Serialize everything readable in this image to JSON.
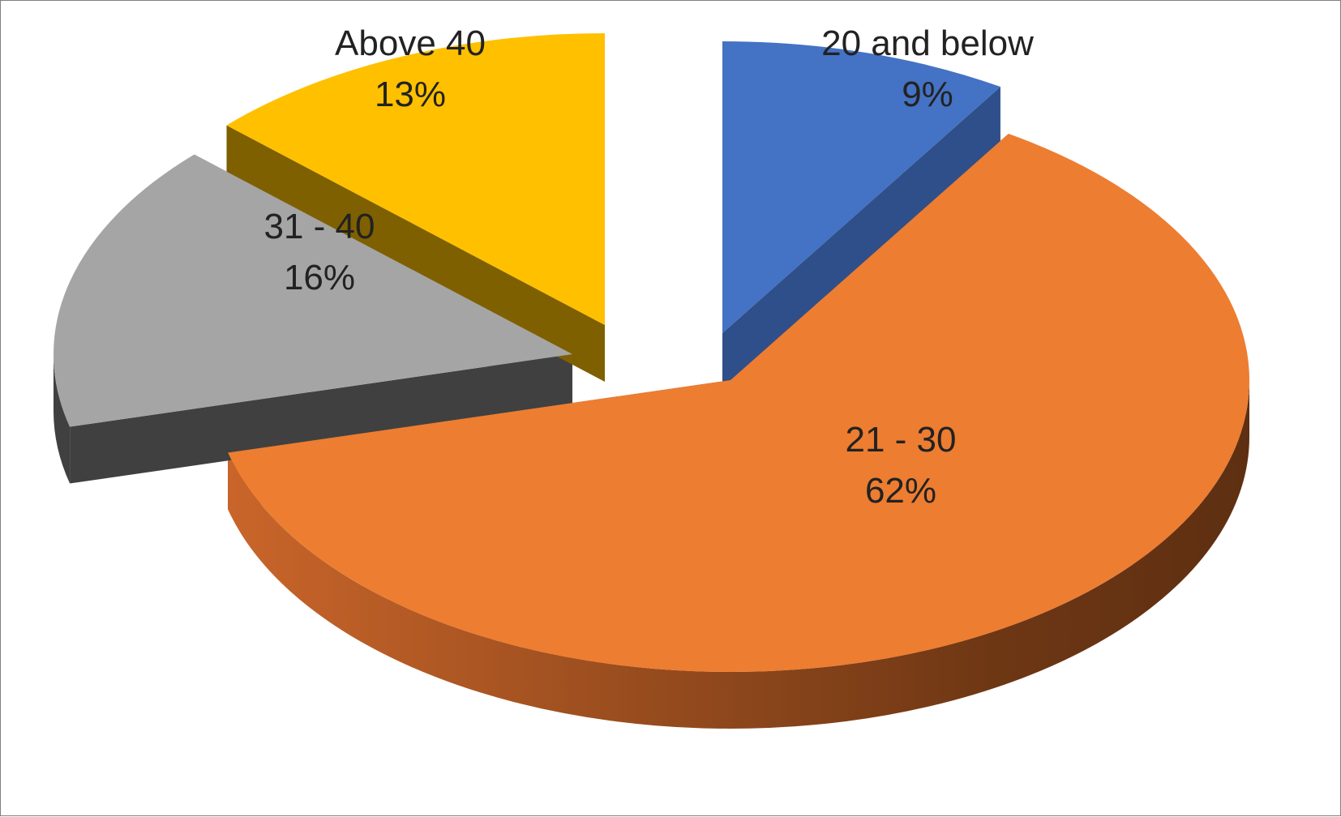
{
  "chart_data": {
    "type": "pie",
    "style": "3d-exploded",
    "title": "",
    "legend": "none",
    "slices": [
      {
        "label": "20 and below",
        "percent_label": "9%",
        "value": 9,
        "color": "#4472c4"
      },
      {
        "label": "21 - 30",
        "percent_label": "62%",
        "value": 62,
        "color": "#ed7d31"
      },
      {
        "label": "31 - 40",
        "percent_label": "16%",
        "value": 16,
        "color": "#a5a5a5"
      },
      {
        "label": "Above 40",
        "percent_label": "13%",
        "value": 13,
        "color": "#ffc000"
      }
    ]
  }
}
